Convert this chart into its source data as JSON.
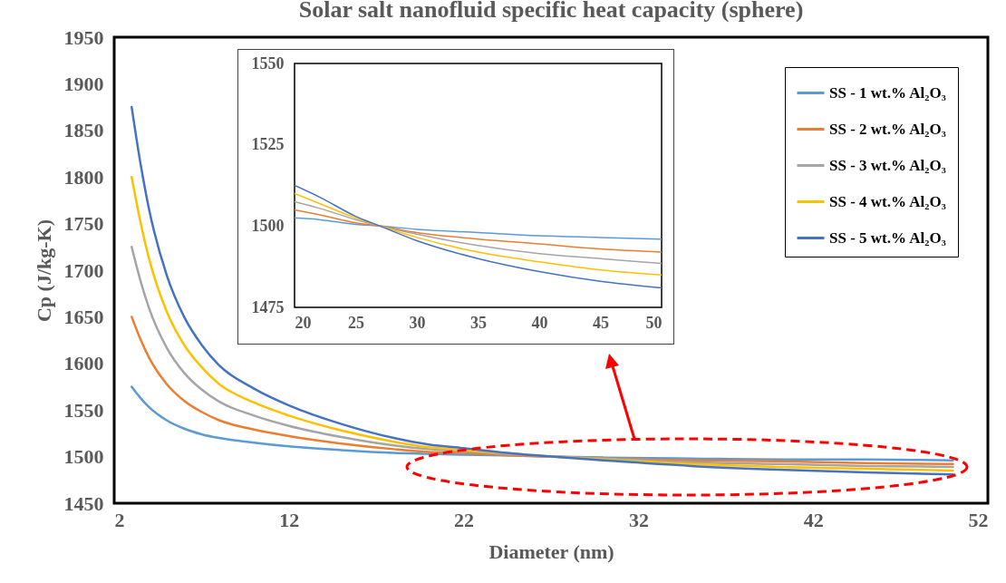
{
  "chart_data": [
    {
      "type": "line",
      "title": "Solar salt nanofluid specific heat capacity (sphere)",
      "xlabel": "Diameter (nm)",
      "ylabel": "Cp (J/kg-K)",
      "x": [
        3,
        3.5,
        4,
        5,
        6,
        7,
        8,
        10,
        12,
        15,
        18,
        20,
        22,
        25,
        27,
        30,
        35,
        40,
        45,
        50
      ],
      "xlim": [
        2,
        52
      ],
      "xticks": [
        2,
        12,
        22,
        32,
        42,
        52
      ],
      "ylim": [
        1450,
        1950
      ],
      "yticks": [
        1450,
        1500,
        1550,
        1600,
        1650,
        1700,
        1750,
        1800,
        1850,
        1900,
        1950
      ],
      "grid": false,
      "legend": "top right",
      "marker": "none",
      "line_style": "solid",
      "series": [
        {
          "name": "SS - 1 wt.% Al₂O₃",
          "color": "#5b9bd5",
          "values": [
            1575,
            1563,
            1553,
            1539,
            1530,
            1524,
            1520,
            1515,
            1511,
            1507,
            1504,
            1503,
            1502,
            1501,
            1500,
            1499,
            1498,
            1497,
            1497,
            1496
          ]
        },
        {
          "name": "SS - 2 wt.% Al₂O₃",
          "color": "#ed7d31",
          "values": [
            1650,
            1626,
            1606,
            1578,
            1560,
            1548,
            1539,
            1529,
            1522,
            1514,
            1508,
            1505,
            1504,
            1501,
            1500,
            1498,
            1496,
            1495,
            1493,
            1492
          ]
        },
        {
          "name": "SS - 3 wt.% Al₂O₃",
          "color": "#a5a5a5",
          "values": [
            1725,
            1689,
            1659,
            1617,
            1590,
            1572,
            1559,
            1544,
            1533,
            1521,
            1512,
            1508,
            1506,
            1502,
            1500,
            1498,
            1494,
            1492,
            1490,
            1489
          ]
        },
        {
          "name": "SS - 4 wt.% Al₂O₃",
          "color": "#ffc000",
          "values": [
            1800,
            1752,
            1712,
            1656,
            1620,
            1596,
            1578,
            1558,
            1544,
            1528,
            1516,
            1510,
            1507,
            1503,
            1500,
            1497,
            1492,
            1489,
            1487,
            1485
          ]
        },
        {
          "name": "SS - 5 wt.% Al₂O₃",
          "color": "#4472c4",
          "values": [
            1875,
            1815,
            1765,
            1695,
            1650,
            1620,
            1598,
            1573,
            1555,
            1535,
            1520,
            1513,
            1509,
            1503,
            1500,
            1496,
            1490,
            1486,
            1483,
            1481
          ]
        }
      ]
    },
    {
      "type": "line",
      "x": [
        20,
        22,
        25,
        27,
        30,
        35,
        40,
        45,
        50
      ],
      "xlim": [
        20,
        50
      ],
      "xticks": [
        20,
        25,
        30,
        35,
        40,
        45,
        50
      ],
      "ylim": [
        1475,
        1550
      ],
      "yticks": [
        1475,
        1500,
        1525,
        1550
      ],
      "grid": false,
      "marker": "none",
      "line_style": "solid",
      "series": [
        {
          "color": "#5b9bd5",
          "values": [
            1502.5,
            1502,
            1500.5,
            1500,
            1499,
            1498,
            1497,
            1496.5,
            1496
          ]
        },
        {
          "color": "#ed7d31",
          "values": [
            1505,
            1503.5,
            1501,
            1500,
            1498,
            1496,
            1494.5,
            1493,
            1492
          ]
        },
        {
          "color": "#a5a5a5",
          "values": [
            1507.5,
            1505.5,
            1502,
            1500,
            1497.5,
            1494,
            1491.5,
            1490,
            1488.5
          ]
        },
        {
          "color": "#ffc000",
          "values": [
            1510,
            1507,
            1502.5,
            1500,
            1496.5,
            1492,
            1489,
            1486.5,
            1485
          ]
        },
        {
          "color": "#4472c4",
          "values": [
            1512.5,
            1509,
            1503,
            1500,
            1495.5,
            1490,
            1486,
            1483,
            1481
          ]
        }
      ]
    }
  ]
}
